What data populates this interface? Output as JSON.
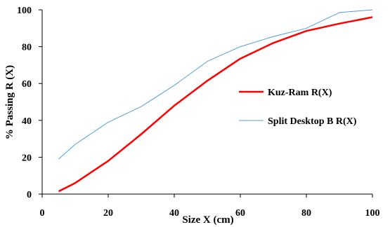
{
  "chart_data": {
    "type": "line",
    "xlabel": "Size X (cm)",
    "ylabel": "% Passing R (X)",
    "xlim": [
      0,
      100
    ],
    "ylim": [
      0,
      100
    ],
    "x_ticks": [
      "0",
      "20",
      "40",
      "60",
      "80",
      "100"
    ],
    "y_ticks": [
      "0",
      "20",
      "40",
      "60",
      "80",
      "100"
    ],
    "grid": false,
    "legend_position": "right",
    "series": [
      {
        "name": "Kuz-Ram R(X)",
        "color": "#ff0000",
        "x": [
          5,
          10,
          20,
          30,
          40,
          50,
          60,
          70,
          80,
          90,
          100
        ],
        "y": [
          1.5,
          6,
          18,
          32.5,
          48,
          61.5,
          73.5,
          82,
          88.5,
          92.5,
          96
        ]
      },
      {
        "name": "Split Desktop B R(X)",
        "color": "#4f9fd5",
        "x": [
          5,
          10,
          20,
          30,
          40,
          50,
          60,
          70,
          80,
          90,
          100
        ],
        "y": [
          19,
          27,
          39,
          47.5,
          59,
          72,
          80,
          85.5,
          90,
          98.5,
          100
        ]
      }
    ]
  }
}
